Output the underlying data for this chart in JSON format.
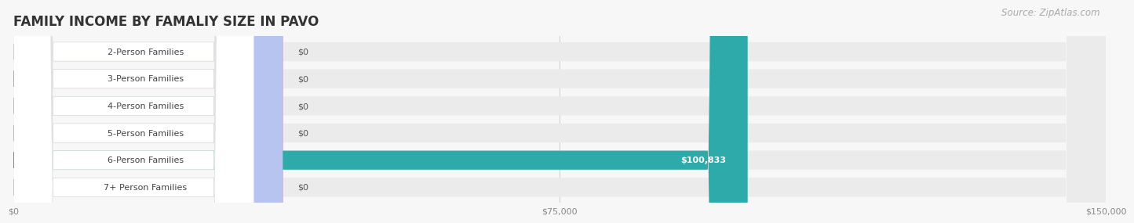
{
  "title": "FAMILY INCOME BY FAMALIY SIZE IN PAVO",
  "source": "Source: ZipAtlas.com",
  "categories": [
    "2-Person Families",
    "3-Person Families",
    "4-Person Families",
    "5-Person Families",
    "6-Person Families",
    "7+ Person Families"
  ],
  "values": [
    0,
    0,
    0,
    0,
    100833,
    0
  ],
  "bar_colors": [
    "#f5c98a",
    "#f09090",
    "#a8c4e8",
    "#d4a8d8",
    "#2eaaaa",
    "#b8c4f0"
  ],
  "label_bg_colors": [
    "#fde8c8",
    "#fad4d4",
    "#d8e4f8",
    "#ead4f0",
    "#2eaaaa",
    "#dde0f8"
  ],
  "xlim": [
    0,
    150000
  ],
  "xticks": [
    0,
    75000,
    150000
  ],
  "xtick_labels": [
    "$0",
    "$75,000",
    "$150,000"
  ],
  "background_color": "#f7f7f7",
  "row_bg_color": "#ebebeb",
  "title_fontsize": 12,
  "source_fontsize": 8.5,
  "label_fontsize": 8,
  "value_fontsize": 8
}
